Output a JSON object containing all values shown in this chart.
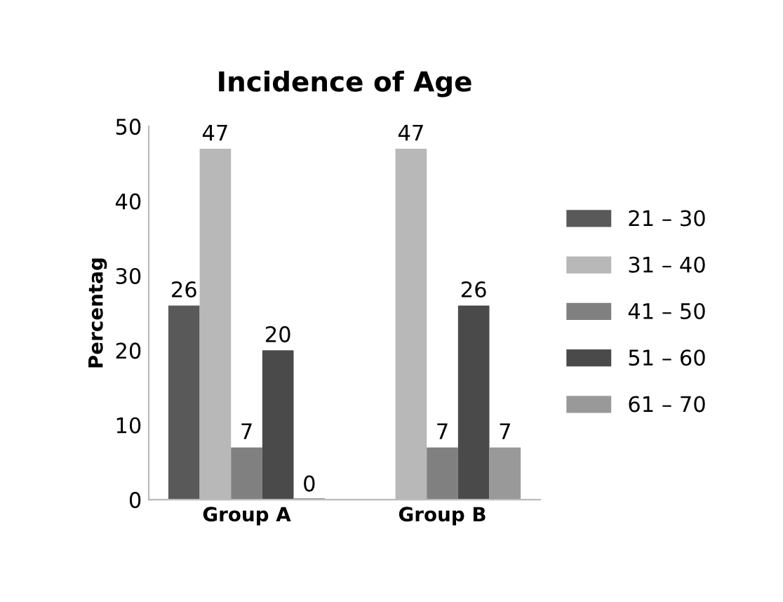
{
  "chart_data": {
    "type": "bar",
    "title": "Incidence of Age",
    "ylabel": "Percentag",
    "categories": [
      "Group A",
      "Group B"
    ],
    "series": [
      {
        "name": "21 – 30",
        "color": "#595959",
        "values": [
          26,
          null
        ],
        "value_labels": [
          "26",
          null
        ]
      },
      {
        "name": "31 – 40",
        "color": "#b8b8b8",
        "values": [
          47,
          47
        ],
        "value_labels": [
          "47",
          "47"
        ]
      },
      {
        "name": "41 – 50",
        "color": "#808080",
        "values": [
          7,
          7
        ],
        "value_labels": [
          "7",
          "7"
        ]
      },
      {
        "name": "51 – 60",
        "color": "#4a4a4a",
        "values": [
          20,
          26
        ],
        "value_labels": [
          "20",
          "26"
        ]
      },
      {
        "name": "61 – 70",
        "color": "#999999",
        "values": [
          0,
          7
        ],
        "value_labels": [
          "0",
          "7"
        ]
      }
    ],
    "ylim": [
      0,
      50
    ],
    "yticks": [
      0,
      10,
      20,
      30,
      40,
      50
    ],
    "grid": false,
    "legend": "right"
  }
}
